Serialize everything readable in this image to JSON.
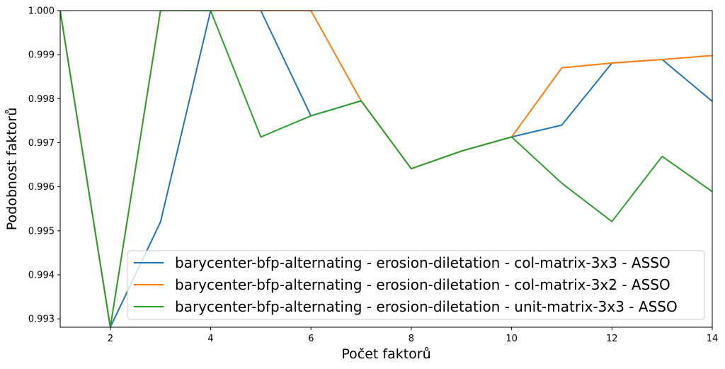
{
  "chart_data": {
    "type": "line",
    "xlabel": "Počet faktorů",
    "ylabel": "Podobnost faktorů",
    "xlim": [
      1,
      14
    ],
    "ylim": [
      0.99281,
      1.0
    ],
    "xticks": [
      2,
      4,
      6,
      8,
      10,
      12,
      14
    ],
    "yticks": [
      0.993,
      0.994,
      0.995,
      0.996,
      0.997,
      0.998,
      0.999,
      1.0
    ],
    "ytick_labels": [
      "0.993",
      "0.994",
      "0.995",
      "0.996",
      "0.997",
      "0.998",
      "0.999",
      "1.000"
    ],
    "grid": false,
    "legend_position": "lower-right",
    "x": [
      1,
      2,
      3,
      4,
      5,
      6,
      7,
      8,
      9,
      10,
      11,
      12,
      13,
      14
    ],
    "series": [
      {
        "name": "barycenter-bfp-alternating - erosion-diletation - col-matrix-3x3 - ASSO",
        "color": "#1f77b4",
        "values": [
          1.0,
          0.99281,
          0.9952,
          1.0,
          1.0,
          0.99761,
          0.99795,
          0.99641,
          0.99681,
          0.99713,
          0.9974,
          0.99881,
          0.99889,
          0.99794
        ]
      },
      {
        "name": "barycenter-bfp-alternating - erosion-diletation - col-matrix-3x2 - ASSO",
        "color": "#ff7f0e",
        "values": [
          1.0,
          0.99281,
          1.0,
          1.0,
          1.0,
          1.0,
          0.99795,
          0.99641,
          0.99681,
          0.99713,
          0.9987,
          0.99881,
          0.99889,
          0.99898
        ]
      },
      {
        "name": "barycenter-bfp-alternating - erosion-diletation - unit-matrix-3x3 - ASSO",
        "color": "#2ca02c",
        "values": [
          1.0,
          0.99281,
          1.0,
          1.0,
          0.99713,
          0.99761,
          0.99795,
          0.99641,
          0.99681,
          0.99713,
          0.99608,
          0.99521,
          0.99669,
          0.99589
        ]
      }
    ]
  }
}
